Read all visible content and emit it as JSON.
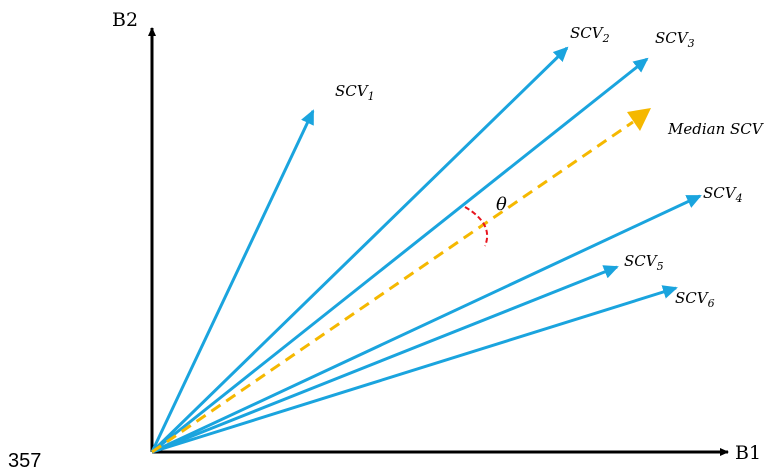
{
  "page_number": "357",
  "axes": {
    "x_label": "B1",
    "y_label": "B2"
  },
  "vectors": [
    {
      "label_main": "SCV",
      "label_sub": "1"
    },
    {
      "label_main": "SCV",
      "label_sub": "2"
    },
    {
      "label_main": "SCV",
      "label_sub": "3"
    },
    {
      "label_main": "SCV",
      "label_sub": "4"
    },
    {
      "label_main": "SCV",
      "label_sub": "5"
    },
    {
      "label_main": "SCV",
      "label_sub": "6"
    }
  ],
  "median": {
    "label": "Median SCV"
  },
  "angle": {
    "symbol": "θ"
  },
  "colors": {
    "vector": "#1aa4de",
    "median": "#f5b800",
    "angle_arc": "#e8141e",
    "axis": "#000000"
  }
}
